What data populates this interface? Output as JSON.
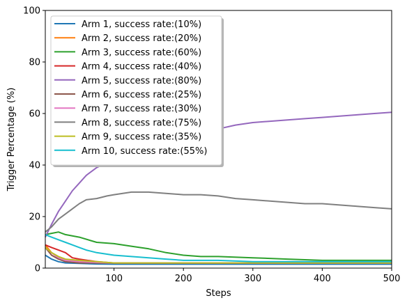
{
  "chart_data": {
    "type": "line",
    "xlabel": "Steps",
    "ylabel": "Trigger Percentage (%)",
    "xlim": [
      1,
      500
    ],
    "ylim": [
      0,
      100
    ],
    "xticks": [
      100,
      200,
      300,
      400,
      500
    ],
    "yticks": [
      0,
      20,
      40,
      60,
      80,
      100
    ],
    "grid": false,
    "legend_position": "upper-left",
    "series": [
      {
        "name": "Arm 1, success rate:(10%)",
        "color": "#1f77b4",
        "x": [
          1,
          10,
          20,
          30,
          50,
          75,
          100,
          150,
          200,
          300,
          400,
          500
        ],
        "values": [
          5,
          3.5,
          2.5,
          2,
          1.8,
          1.6,
          1.5,
          1.5,
          1.5,
          1.5,
          1.5,
          1.5
        ]
      },
      {
        "name": "Arm 2, success rate:(20%)",
        "color": "#ff7f0e",
        "x": [
          1,
          10,
          20,
          30,
          50,
          75,
          100,
          150,
          200,
          300,
          400,
          500
        ],
        "values": [
          9,
          6,
          4,
          3,
          2.5,
          2,
          2,
          2,
          2,
          2,
          2,
          2
        ]
      },
      {
        "name": "Arm 3, success rate:(60%)",
        "color": "#2ca02c",
        "x": [
          1,
          10,
          20,
          30,
          50,
          75,
          100,
          125,
          150,
          175,
          200,
          225,
          250,
          300,
          350,
          400,
          450,
          500
        ],
        "values": [
          13,
          13.5,
          14,
          13,
          12,
          10,
          9.5,
          8.5,
          7.5,
          6,
          5,
          4.5,
          4.5,
          4,
          3.5,
          3,
          3,
          3
        ]
      },
      {
        "name": "Arm 4, success rate:(40%)",
        "color": "#d62728",
        "x": [
          1,
          10,
          20,
          30,
          40,
          50,
          75,
          100,
          150,
          200,
          300,
          400,
          500
        ],
        "values": [
          9,
          8,
          7,
          6,
          4,
          3.5,
          2.5,
          2,
          2,
          2,
          2,
          2,
          2
        ]
      },
      {
        "name": "Arm 5, success rate:(80%)",
        "color": "#9467bd",
        "x": [
          1,
          10,
          20,
          30,
          40,
          50,
          60,
          75,
          90,
          100,
          125,
          150,
          175,
          200,
          225,
          250,
          275,
          300,
          325,
          350,
          375,
          400,
          425,
          450,
          475,
          500
        ],
        "values": [
          12,
          17,
          22,
          26,
          30,
          33,
          36,
          39,
          41,
          43,
          46,
          49,
          51,
          52,
          53,
          54,
          55.5,
          56.5,
          57,
          57.5,
          58,
          58.5,
          59,
          59.5,
          60,
          60.5
        ]
      },
      {
        "name": "Arm 6, success rate:(25%)",
        "color": "#8c564b",
        "x": [
          1,
          10,
          20,
          30,
          50,
          75,
          100,
          150,
          200,
          300,
          400,
          500
        ],
        "values": [
          8,
          5,
          3.5,
          2.5,
          2,
          2,
          2,
          2,
          2,
          2,
          2,
          2
        ]
      },
      {
        "name": "Arm 7, success rate:(30%)",
        "color": "#e377c2",
        "x": [
          1,
          10,
          20,
          30,
          50,
          75,
          100,
          150,
          200,
          300,
          400,
          500
        ],
        "values": [
          8,
          6,
          4,
          3,
          2.5,
          2.2,
          2,
          2,
          2,
          2,
          2,
          2
        ]
      },
      {
        "name": "Arm 8, success rate:(75%)",
        "color": "#7f7f7f",
        "x": [
          1,
          10,
          20,
          30,
          40,
          50,
          60,
          75,
          90,
          100,
          125,
          150,
          175,
          200,
          225,
          250,
          275,
          300,
          325,
          350,
          375,
          400,
          425,
          450,
          475,
          500
        ],
        "values": [
          14,
          16,
          19,
          21,
          23,
          25,
          26.5,
          27,
          28,
          28.5,
          29.5,
          29.5,
          29,
          28.5,
          28.5,
          28,
          27,
          26.5,
          26,
          25.5,
          25,
          25,
          24.5,
          24,
          23.5,
          23
        ]
      },
      {
        "name": "Arm 9, success rate:(35%)",
        "color": "#bcbd22",
        "x": [
          1,
          10,
          20,
          30,
          50,
          75,
          100,
          150,
          200,
          300,
          400,
          500
        ],
        "values": [
          8,
          6,
          4.5,
          3.5,
          3,
          2.5,
          2,
          2,
          2,
          2,
          2,
          2
        ]
      },
      {
        "name": "Arm 10, success rate:(55%)",
        "color": "#17becf",
        "x": [
          1,
          10,
          20,
          30,
          40,
          50,
          60,
          75,
          100,
          125,
          150,
          175,
          200,
          250,
          300,
          400,
          500
        ],
        "values": [
          13,
          12,
          11,
          10,
          9,
          8,
          7,
          6,
          5,
          4.5,
          4,
          3.5,
          3,
          3,
          2.5,
          2.5,
          2.5
        ]
      }
    ]
  }
}
